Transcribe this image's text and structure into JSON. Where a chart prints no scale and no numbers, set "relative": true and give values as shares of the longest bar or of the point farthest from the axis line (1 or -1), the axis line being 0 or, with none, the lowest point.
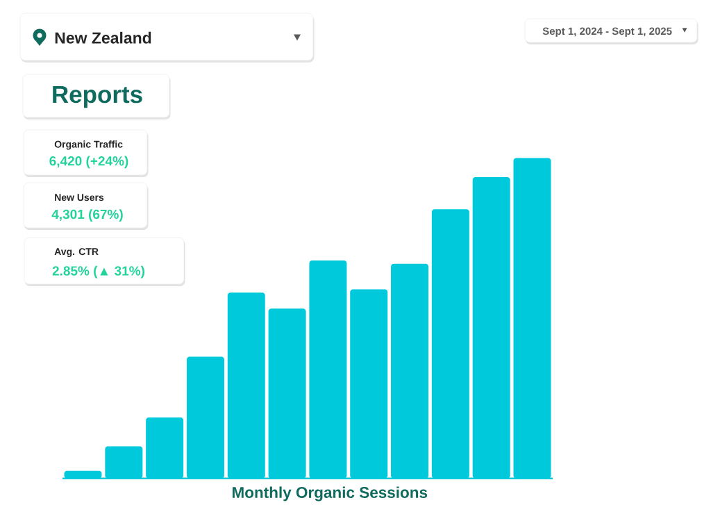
{
  "chart_data": {
    "type": "bar",
    "title": "Reports",
    "xlabel": "Monthly Organic Sessions",
    "annotations": [
      "New Zealand",
      "Sept 1, 2024 - Sept 1, 2025",
      "Organic Traffic",
      "6,420 (+24%)",
      "New Users",
      "4,301 (67%)",
      "Avg. CTR",
      "2.85% (▲ 31%)"
    ],
    "categories": [
      null,
      null,
      null,
      null,
      null,
      null,
      null,
      null,
      null,
      null,
      null,
      null
    ],
    "values": [
      0.024,
      0.1,
      0.19,
      0.38,
      0.58,
      0.53,
      0.68,
      0.59,
      0.67,
      0.84,
      0.94,
      1
    ],
    "color": "#00c9db",
    "relative": true
  }
}
